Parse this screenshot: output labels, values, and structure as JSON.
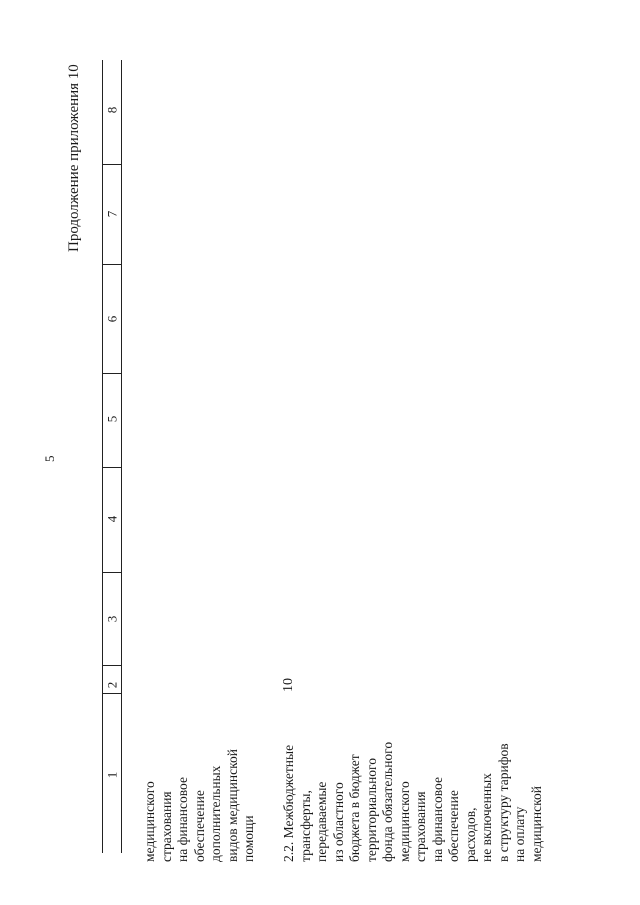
{
  "page_number": "5",
  "continuation_label": "Продолжение приложения 10",
  "table": {
    "column_numbers": [
      "1",
      "2",
      "3",
      "4",
      "5",
      "6",
      "7",
      "8"
    ],
    "rows": [
      {
        "name_lines": [
          "медицинского",
          "страхования",
          "на финансовое",
          "обеспечение",
          "дополнительных",
          "видов медицинской",
          "помощи"
        ],
        "col2": ""
      },
      {
        "name_lines": [
          "2.2. Межбюджетные",
          "трансферты,",
          "передаваемые",
          "из областного",
          "бюджета в бюджет",
          "территориального",
          "фонда обязательного",
          "медицинского",
          "страхования",
          "на финансовое",
          "обеспечение",
          "расходов,",
          "не включенных",
          "в структуру тарифов",
          "на оплату",
          "медицинской"
        ],
        "col2": "10"
      }
    ]
  }
}
